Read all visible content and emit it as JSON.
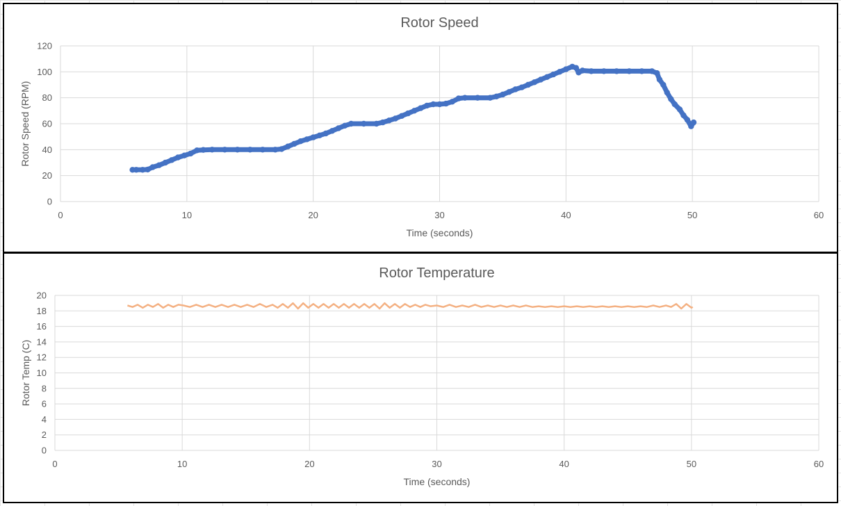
{
  "chart_data": [
    {
      "type": "scatter",
      "title": "Rotor Speed",
      "xlabel": "Time (seconds)",
      "ylabel": "Rotor Speed (RPM)",
      "xlim": [
        0,
        60
      ],
      "ylim": [
        0,
        120
      ],
      "xticks": [
        "0",
        "10",
        "20",
        "30",
        "40",
        "50",
        "60"
      ],
      "yticks": [
        "0",
        "20",
        "40",
        "60",
        "80",
        "100",
        "120"
      ],
      "grid": true,
      "legend": "none",
      "color": "#4472C4",
      "series": [
        {
          "points": [
            [
              5.7,
              24.5
            ],
            [
              6.0,
              24.5
            ],
            [
              6.5,
              24.5
            ],
            [
              6.9,
              24.7
            ],
            [
              7.3,
              26.5
            ],
            [
              7.8,
              28.0
            ],
            [
              8.3,
              30.0
            ],
            [
              8.8,
              32.0
            ],
            [
              9.3,
              34.0
            ],
            [
              9.8,
              35.5
            ],
            [
              10.3,
              37.0
            ],
            [
              10.8,
              39.5
            ],
            [
              11.3,
              39.8
            ],
            [
              12.0,
              40.0
            ],
            [
              13.0,
              40.0
            ],
            [
              14.0,
              40.0
            ],
            [
              15.0,
              40.0
            ],
            [
              16.0,
              40.0
            ],
            [
              17.0,
              40.0
            ],
            [
              17.5,
              40.5
            ],
            [
              18.0,
              42.5
            ],
            [
              18.5,
              44.5
            ],
            [
              19.0,
              46.5
            ],
            [
              19.5,
              48.0
            ],
            [
              20.0,
              49.5
            ],
            [
              20.5,
              51.0
            ],
            [
              21.0,
              52.5
            ],
            [
              21.5,
              54.5
            ],
            [
              22.0,
              56.5
            ],
            [
              22.5,
              58.5
            ],
            [
              23.0,
              60.0
            ],
            [
              24.0,
              60.0
            ],
            [
              25.0,
              60.0
            ],
            [
              25.5,
              61.0
            ],
            [
              26.0,
              62.5
            ],
            [
              26.5,
              64.0
            ],
            [
              27.0,
              66.0
            ],
            [
              27.5,
              68.0
            ],
            [
              28.0,
              70.0
            ],
            [
              28.5,
              72.0
            ],
            [
              29.0,
              74.0
            ],
            [
              29.5,
              75.0
            ],
            [
              30.0,
              75.0
            ],
            [
              30.5,
              75.5
            ],
            [
              31.0,
              77.0
            ],
            [
              31.5,
              79.5
            ],
            [
              32.0,
              80.0
            ],
            [
              33.0,
              80.0
            ],
            [
              34.0,
              80.0
            ],
            [
              34.5,
              81.0
            ],
            [
              35.0,
              82.5
            ],
            [
              35.5,
              84.5
            ],
            [
              36.0,
              86.5
            ],
            [
              36.5,
              88.0
            ],
            [
              37.0,
              90.0
            ],
            [
              37.5,
              92.0
            ],
            [
              38.0,
              94.0
            ],
            [
              38.5,
              96.0
            ],
            [
              39.0,
              98.0
            ],
            [
              39.5,
              100.0
            ],
            [
              40.0,
              102.0
            ],
            [
              40.5,
              104.0
            ],
            [
              40.8,
              103.0
            ],
            [
              41.0,
              99.5
            ],
            [
              41.3,
              101.0
            ],
            [
              42.0,
              100.5
            ],
            [
              43.0,
              100.5
            ],
            [
              44.0,
              100.5
            ],
            [
              45.0,
              100.5
            ],
            [
              46.0,
              100.5
            ],
            [
              46.8,
              100.5
            ],
            [
              47.2,
              99.0
            ],
            [
              47.4,
              94.0
            ],
            [
              47.7,
              90.0
            ],
            [
              48.0,
              84.0
            ],
            [
              48.3,
              79.0
            ],
            [
              48.6,
              75.0
            ],
            [
              49.0,
              71.0
            ],
            [
              49.3,
              66.5
            ],
            [
              49.6,
              63.0
            ],
            [
              49.9,
              58.0
            ],
            [
              50.1,
              61.0
            ]
          ]
        }
      ]
    },
    {
      "type": "line",
      "title": "Rotor Temperature",
      "xlabel": "Time (seconds)",
      "ylabel": "Rotor Temp (C)",
      "xlim": [
        0,
        60
      ],
      "ylim": [
        0,
        20
      ],
      "xticks": [
        "0",
        "10",
        "20",
        "30",
        "40",
        "50",
        "60"
      ],
      "yticks": [
        "0",
        "2",
        "4",
        "6",
        "8",
        "10",
        "12",
        "14",
        "16",
        "18",
        "20"
      ],
      "grid": true,
      "legend": "none",
      "color": "#F4B183",
      "series": [
        {
          "x": [
            5.7,
            6.1,
            6.5,
            6.9,
            7.3,
            7.7,
            8.1,
            8.5,
            8.9,
            9.3,
            9.7,
            10.1,
            10.6,
            11.1,
            11.6,
            12.1,
            12.6,
            13.1,
            13.6,
            14.1,
            14.6,
            15.1,
            15.6,
            16.1,
            16.6,
            17.1,
            17.5,
            17.9,
            18.3,
            18.7,
            19.1,
            19.5,
            19.9,
            20.3,
            20.7,
            21.1,
            21.5,
            21.9,
            22.3,
            22.7,
            23.1,
            23.5,
            23.9,
            24.3,
            24.7,
            25.1,
            25.5,
            25.9,
            26.3,
            26.7,
            27.1,
            27.5,
            27.9,
            28.3,
            28.7,
            29.1,
            29.5,
            30.0,
            30.5,
            31.0,
            31.5,
            32.0,
            32.5,
            33.0,
            33.5,
            34.0,
            34.5,
            35.0,
            35.5,
            36.0,
            36.5,
            37.0,
            37.5,
            38.0,
            38.5,
            39.0,
            39.5,
            40.0,
            40.5,
            41.0,
            41.5,
            42.0,
            42.5,
            43.0,
            43.5,
            44.0,
            44.5,
            45.0,
            45.5,
            46.0,
            46.5,
            47.0,
            47.5,
            48.0,
            48.4,
            48.8,
            49.2,
            49.6,
            50.0,
            50.1
          ],
          "values": [
            18.7,
            18.5,
            18.8,
            18.4,
            18.8,
            18.5,
            18.9,
            18.4,
            18.8,
            18.5,
            18.8,
            18.7,
            18.5,
            18.8,
            18.5,
            18.8,
            18.5,
            18.8,
            18.5,
            18.8,
            18.5,
            18.8,
            18.5,
            18.9,
            18.5,
            18.8,
            18.4,
            18.9,
            18.4,
            19.0,
            18.3,
            19.0,
            18.4,
            18.9,
            18.4,
            18.9,
            18.4,
            18.9,
            18.4,
            18.9,
            18.4,
            18.9,
            18.4,
            18.9,
            18.4,
            18.9,
            18.3,
            19.0,
            18.4,
            18.9,
            18.4,
            18.9,
            18.5,
            18.8,
            18.5,
            18.8,
            18.6,
            18.7,
            18.5,
            18.8,
            18.5,
            18.7,
            18.5,
            18.8,
            18.5,
            18.7,
            18.5,
            18.7,
            18.5,
            18.7,
            18.5,
            18.7,
            18.5,
            18.6,
            18.5,
            18.6,
            18.5,
            18.6,
            18.5,
            18.6,
            18.5,
            18.6,
            18.5,
            18.6,
            18.5,
            18.6,
            18.5,
            18.6,
            18.5,
            18.6,
            18.5,
            18.7,
            18.5,
            18.7,
            18.5,
            18.9,
            18.3,
            18.9,
            18.4,
            18.5
          ]
        }
      ]
    }
  ]
}
